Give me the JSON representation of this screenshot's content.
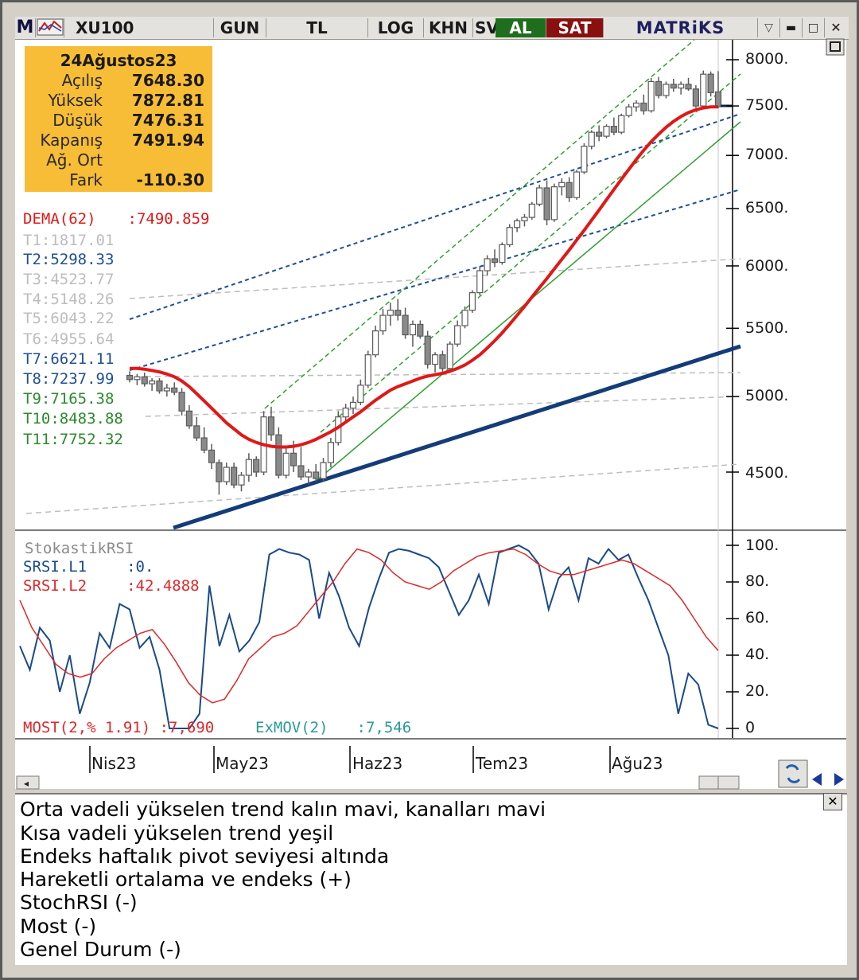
{
  "toolbar": {
    "logo": "M",
    "symbol": "XU100",
    "period": "GUN",
    "currency": "TL",
    "log": "LOG",
    "khn": "KHN",
    "sv": "SV",
    "buy": "AL",
    "sell": "SAT",
    "brand": "MATRiKS",
    "colors": {
      "buy": "#1e6e1e",
      "sell": "#8a1010",
      "brand": "#202060"
    }
  },
  "ohlc_box": {
    "date": "24Ağustos23",
    "rows": [
      {
        "label": "Açılış",
        "value": "7648.30"
      },
      {
        "label": "Yüksek",
        "value": "7872.81"
      },
      {
        "label": "Düşük",
        "value": "7476.31"
      },
      {
        "label": "Kapanış",
        "value": "7491.94"
      },
      {
        "label": "Ağ. Ort",
        "value": ""
      },
      {
        "label": "Fark",
        "value": "-110.30"
      }
    ]
  },
  "indicators": {
    "dema": {
      "name": "DEMA(62)",
      "value": ":7490.859"
    },
    "t1": "T1:1817.01",
    "t2": "T2:5298.33",
    "t3": "T3:4523.77",
    "t4": "T4:5148.26",
    "t5": "T5:6043.22",
    "t6": "T6:4955.64",
    "t7": "T7:6621.11",
    "t8": "T8:7237.99",
    "t9": "T9:7165.38",
    "t10": "T10:8483.88",
    "t11": "T11:7752.32"
  },
  "lower_panel": {
    "title": "StokastikRSI",
    "l1_name": "SRSI.L1",
    "l1_value": ":0.",
    "l2_name": "SRSI.L2",
    "l2_value": ":42.4888",
    "most": "MOST(2,% 1.91) :7,690",
    "exmov_name": "ExMOV(2)",
    "exmov_value": ":7,546"
  },
  "notes": [
    "Orta vadeli yükselen trend kalın mavi, kanalları mavi",
    "Kısa vadeli yükselen trend yeşil",
    "Endeks haftalık pivot seviyesi altında",
    "Hareketli ortalama ve endeks (+)",
    "StochRSI (-)",
    "Most  (-)",
    "Genel Durum (-)"
  ],
  "chart_data": [
    {
      "type": "candlestick",
      "title": "XU100",
      "x_ticks": [
        "Nis23",
        "May23",
        "Haz23",
        "Tem23",
        "Ağu23"
      ],
      "y_ticks": [
        "8000.",
        "7500.",
        "7000.",
        "6500.",
        "6000.",
        "5500.",
        "5000.",
        "4500."
      ],
      "ylim": [
        4300,
        8150
      ],
      "log_scale": true,
      "candles": [
        {
          "o": 5150,
          "h": 5180,
          "l": 5100,
          "c": 5120
        },
        {
          "o": 5120,
          "h": 5160,
          "l": 5080,
          "c": 5140
        },
        {
          "o": 5140,
          "h": 5170,
          "l": 5070,
          "c": 5090
        },
        {
          "o": 5090,
          "h": 5130,
          "l": 5040,
          "c": 5110
        },
        {
          "o": 5110,
          "h": 5130,
          "l": 5020,
          "c": 5040
        },
        {
          "o": 5040,
          "h": 5090,
          "l": 5000,
          "c": 5060
        },
        {
          "o": 5060,
          "h": 5100,
          "l": 5010,
          "c": 5030
        },
        {
          "o": 5030,
          "h": 5060,
          "l": 4870,
          "c": 4900
        },
        {
          "o": 4900,
          "h": 4940,
          "l": 4780,
          "c": 4800
        },
        {
          "o": 4800,
          "h": 4860,
          "l": 4700,
          "c": 4720
        },
        {
          "o": 4720,
          "h": 4790,
          "l": 4620,
          "c": 4640
        },
        {
          "o": 4640,
          "h": 4680,
          "l": 4520,
          "c": 4560
        },
        {
          "o": 4560,
          "h": 4580,
          "l": 4360,
          "c": 4440
        },
        {
          "o": 4440,
          "h": 4560,
          "l": 4420,
          "c": 4530
        },
        {
          "o": 4530,
          "h": 4560,
          "l": 4400,
          "c": 4420
        },
        {
          "o": 4420,
          "h": 4500,
          "l": 4380,
          "c": 4480
        },
        {
          "o": 4480,
          "h": 4620,
          "l": 4440,
          "c": 4580
        },
        {
          "o": 4580,
          "h": 4600,
          "l": 4470,
          "c": 4500
        },
        {
          "o": 4500,
          "h": 4900,
          "l": 4480,
          "c": 4860
        },
        {
          "o": 4860,
          "h": 4930,
          "l": 4700,
          "c": 4740
        },
        {
          "o": 4740,
          "h": 4790,
          "l": 4460,
          "c": 4480
        },
        {
          "o": 4480,
          "h": 4650,
          "l": 4460,
          "c": 4620
        },
        {
          "o": 4620,
          "h": 4700,
          "l": 4500,
          "c": 4540
        },
        {
          "o": 4540,
          "h": 4660,
          "l": 4450,
          "c": 4470
        },
        {
          "o": 4470,
          "h": 4520,
          "l": 4420,
          "c": 4500
        },
        {
          "o": 4500,
          "h": 4550,
          "l": 4440,
          "c": 4460
        },
        {
          "o": 4460,
          "h": 4590,
          "l": 4440,
          "c": 4560
        },
        {
          "o": 4560,
          "h": 4720,
          "l": 4530,
          "c": 4690
        },
        {
          "o": 4690,
          "h": 4900,
          "l": 4670,
          "c": 4860
        },
        {
          "o": 4860,
          "h": 4950,
          "l": 4820,
          "c": 4920
        },
        {
          "o": 4920,
          "h": 5000,
          "l": 4880,
          "c": 4960
        },
        {
          "o": 4960,
          "h": 5120,
          "l": 4940,
          "c": 5080
        },
        {
          "o": 5080,
          "h": 5330,
          "l": 5060,
          "c": 5300
        },
        {
          "o": 5300,
          "h": 5520,
          "l": 5280,
          "c": 5480
        },
        {
          "o": 5480,
          "h": 5650,
          "l": 5450,
          "c": 5600
        },
        {
          "o": 5600,
          "h": 5700,
          "l": 5520,
          "c": 5640
        },
        {
          "o": 5640,
          "h": 5730,
          "l": 5560,
          "c": 5600
        },
        {
          "o": 5600,
          "h": 5660,
          "l": 5420,
          "c": 5450
        },
        {
          "o": 5450,
          "h": 5560,
          "l": 5360,
          "c": 5530
        },
        {
          "o": 5530,
          "h": 5560,
          "l": 5420,
          "c": 5440
        },
        {
          "o": 5440,
          "h": 5480,
          "l": 5200,
          "c": 5230
        },
        {
          "o": 5230,
          "h": 5320,
          "l": 5170,
          "c": 5300
        },
        {
          "o": 5300,
          "h": 5330,
          "l": 5170,
          "c": 5200
        },
        {
          "o": 5200,
          "h": 5400,
          "l": 5180,
          "c": 5380
        },
        {
          "o": 5380,
          "h": 5560,
          "l": 5360,
          "c": 5520
        },
        {
          "o": 5520,
          "h": 5670,
          "l": 5500,
          "c": 5640
        },
        {
          "o": 5640,
          "h": 5800,
          "l": 5620,
          "c": 5780
        },
        {
          "o": 5780,
          "h": 6000,
          "l": 5760,
          "c": 5960
        },
        {
          "o": 5960,
          "h": 6090,
          "l": 5920,
          "c": 6060
        },
        {
          "o": 6060,
          "h": 6140,
          "l": 5990,
          "c": 6030
        },
        {
          "o": 6030,
          "h": 6200,
          "l": 6010,
          "c": 6180
        },
        {
          "o": 6180,
          "h": 6360,
          "l": 6160,
          "c": 6330
        },
        {
          "o": 6330,
          "h": 6410,
          "l": 6290,
          "c": 6390
        },
        {
          "o": 6390,
          "h": 6450,
          "l": 6340,
          "c": 6420
        },
        {
          "o": 6420,
          "h": 6560,
          "l": 6400,
          "c": 6540
        },
        {
          "o": 6540,
          "h": 6720,
          "l": 6520,
          "c": 6690
        },
        {
          "o": 6690,
          "h": 6760,
          "l": 6350,
          "c": 6400
        },
        {
          "o": 6400,
          "h": 6730,
          "l": 6380,
          "c": 6700
        },
        {
          "o": 6700,
          "h": 6780,
          "l": 6620,
          "c": 6740
        },
        {
          "o": 6740,
          "h": 6790,
          "l": 6560,
          "c": 6600
        },
        {
          "o": 6600,
          "h": 6860,
          "l": 6580,
          "c": 6840
        },
        {
          "o": 6840,
          "h": 7120,
          "l": 6820,
          "c": 7090
        },
        {
          "o": 7090,
          "h": 7250,
          "l": 7060,
          "c": 7230
        },
        {
          "o": 7230,
          "h": 7300,
          "l": 7140,
          "c": 7190
        },
        {
          "o": 7190,
          "h": 7310,
          "l": 7170,
          "c": 7290
        },
        {
          "o": 7290,
          "h": 7380,
          "l": 7200,
          "c": 7230
        },
        {
          "o": 7230,
          "h": 7420,
          "l": 7210,
          "c": 7400
        },
        {
          "o": 7400,
          "h": 7520,
          "l": 7380,
          "c": 7490
        },
        {
          "o": 7490,
          "h": 7560,
          "l": 7440,
          "c": 7530
        },
        {
          "o": 7530,
          "h": 7620,
          "l": 7410,
          "c": 7450
        },
        {
          "o": 7450,
          "h": 7800,
          "l": 7430,
          "c": 7760
        },
        {
          "o": 7760,
          "h": 7810,
          "l": 7580,
          "c": 7610
        },
        {
          "o": 7610,
          "h": 7760,
          "l": 7580,
          "c": 7730
        },
        {
          "o": 7730,
          "h": 7790,
          "l": 7650,
          "c": 7690
        },
        {
          "o": 7690,
          "h": 7760,
          "l": 7620,
          "c": 7730
        },
        {
          "o": 7730,
          "h": 7800,
          "l": 7660,
          "c": 7680
        },
        {
          "o": 7680,
          "h": 7720,
          "l": 7480,
          "c": 7500
        },
        {
          "o": 7500,
          "h": 7880,
          "l": 7480,
          "c": 7840
        },
        {
          "o": 7840,
          "h": 7870,
          "l": 7600,
          "c": 7640
        },
        {
          "o": 7648.3,
          "h": 7872.81,
          "l": 7476.31,
          "c": 7491.94
        }
      ],
      "dema": [
        5200,
        5200,
        5195,
        5185,
        5175,
        5160,
        5140,
        5110,
        5070,
        5020,
        4970,
        4920,
        4870,
        4820,
        4780,
        4740,
        4710,
        4690,
        4675,
        4665,
        4660,
        4660,
        4665,
        4675,
        4690,
        4710,
        4735,
        4760,
        4790,
        4825,
        4860,
        4895,
        4935,
        4975,
        5010,
        5045,
        5070,
        5090,
        5110,
        5130,
        5145,
        5155,
        5165,
        5180,
        5200,
        5225,
        5260,
        5300,
        5350,
        5405,
        5465,
        5530,
        5600,
        5670,
        5745,
        5820,
        5895,
        5975,
        6055,
        6135,
        6220,
        6305,
        6395,
        6485,
        6580,
        6675,
        6770,
        6865,
        6960,
        7050,
        7135,
        7210,
        7280,
        7340,
        7390,
        7430,
        7460,
        7480,
        7490,
        7490.859
      ]
    },
    {
      "type": "line",
      "title": "StokastikRSI",
      "ylim": [
        0,
        100
      ],
      "y_ticks": [
        "100.",
        "80.",
        "60.",
        "40.",
        "20.",
        "0"
      ],
      "series": [
        {
          "name": "SRSI.L1",
          "values": [
            45,
            32,
            55,
            48,
            20,
            40,
            8,
            25,
            52,
            44,
            68,
            65,
            44,
            50,
            32,
            0,
            0,
            0,
            8,
            78,
            45,
            62,
            42,
            48,
            58,
            95,
            98,
            96,
            95,
            92,
            60,
            85,
            72,
            55,
            45,
            66,
            82,
            96,
            98,
            97,
            95,
            93,
            88,
            75,
            62,
            70,
            84,
            68,
            96,
            98,
            100,
            97,
            90,
            65,
            82,
            88,
            70,
            93,
            90,
            98,
            92,
            95,
            82,
            70,
            55,
            40,
            8,
            30,
            24,
            2,
            0
          ]
        },
        {
          "name": "SRSI.L2",
          "values": [
            70,
            55,
            45,
            35,
            30,
            28,
            30,
            38,
            44,
            48,
            52,
            54,
            46,
            36,
            25,
            18,
            14,
            16,
            26,
            38,
            44,
            50,
            52,
            56,
            64,
            72,
            80,
            90,
            98,
            96,
            92,
            85,
            80,
            78,
            76,
            80,
            86,
            90,
            94,
            96,
            97,
            98,
            95,
            90,
            86,
            84,
            84,
            86,
            88,
            90,
            92,
            90,
            86,
            82,
            78,
            70,
            60,
            50,
            42.4888
          ]
        }
      ]
    }
  ]
}
